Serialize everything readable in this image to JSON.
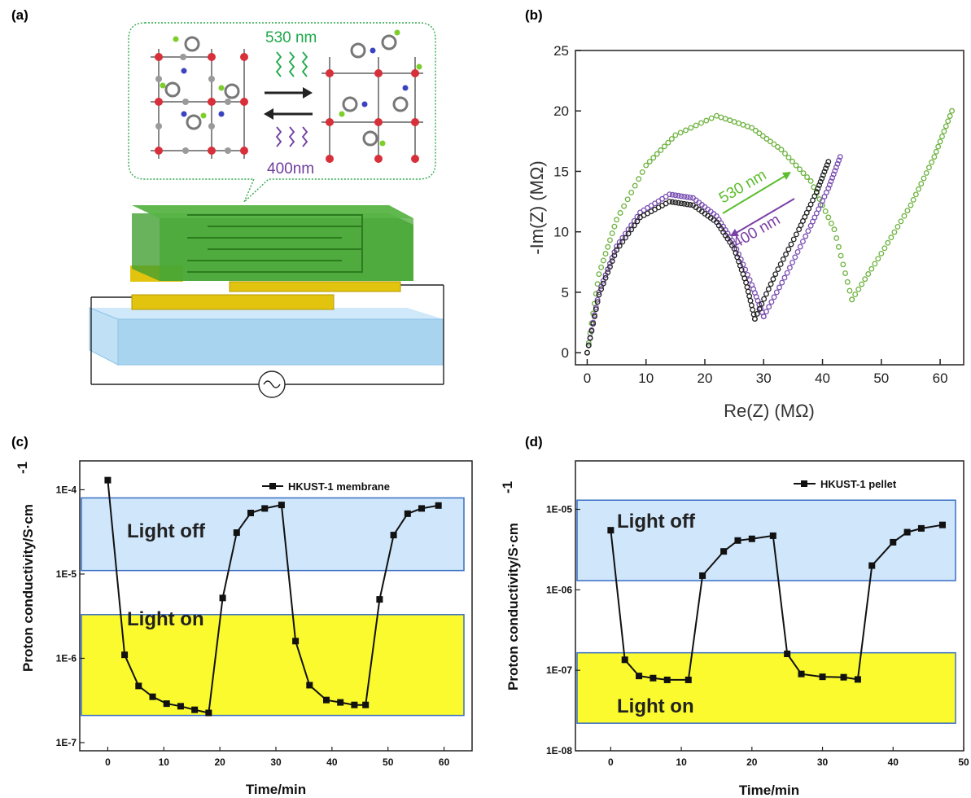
{
  "panel_labels": [
    "(a)",
    "(b)",
    "(c)",
    "(d)"
  ],
  "schematic": {
    "forward_label": "530 nm",
    "reverse_label": "400nm",
    "colors": {
      "green": "#1ea84a",
      "purple": "#6f3d9e",
      "film": "#3f9e2f",
      "electrode": "#e2c40f",
      "substrate": "#a9d4ef"
    }
  },
  "chart_data": [
    {
      "type": "scatter",
      "panel": "(b)",
      "xlabel": "Re(Z)  (MΩ)",
      "ylabel": "-Im(Z)  (MΩ)",
      "xlim": [
        -2,
        64
      ],
      "ylim": [
        -1,
        25
      ],
      "xticks": [
        0,
        10,
        20,
        30,
        40,
        50,
        60
      ],
      "yticks": [
        0,
        5,
        10,
        15,
        20,
        25
      ],
      "annotations": [
        {
          "text": "530 nm",
          "color": "#5cbd2e"
        },
        {
          "text": "400 nm",
          "color": "#7b3fa6"
        }
      ],
      "series": [
        {
          "color": "#6db33f",
          "arc_points": [
            [
              0,
              0
            ],
            [
              2,
              6.5
            ],
            [
              5,
              11
            ],
            [
              10,
              15.5
            ],
            [
              15,
              18
            ],
            [
              22,
              19.6
            ],
            [
              28,
              18.6
            ],
            [
              33,
              16.8
            ],
            [
              38,
              14.2
            ],
            [
              42,
              10.2
            ],
            [
              45,
              4.4
            ]
          ],
          "tail_points": [
            [
              45,
              4.4
            ],
            [
              50,
              8.2
            ],
            [
              55,
              12.2
            ],
            [
              59,
              16.2
            ],
            [
              62,
              20
            ]
          ]
        },
        {
          "color": "#7a4fb3",
          "arc_points": [
            [
              0,
              0
            ],
            [
              2,
              5
            ],
            [
              5,
              8.8
            ],
            [
              9,
              11.6
            ],
            [
              14,
              13.1
            ],
            [
              18,
              12.8
            ],
            [
              22,
              11.3
            ],
            [
              25,
              9
            ],
            [
              28,
              5.6
            ],
            [
              30,
              3
            ]
          ],
          "tail_points": [
            [
              30,
              3
            ],
            [
              34,
              6.6
            ],
            [
              38,
              10.5
            ],
            [
              41,
              13.6
            ],
            [
              43,
              16.2
            ]
          ]
        },
        {
          "color": "#222222",
          "arc_points": [
            [
              0,
              0
            ],
            [
              2,
              4.8
            ],
            [
              5,
              8.5
            ],
            [
              9,
              11.2
            ],
            [
              14,
              12.5
            ],
            [
              18,
              12.2
            ],
            [
              22,
              10.8
            ],
            [
              25,
              8.6
            ],
            [
              27,
              5.8
            ],
            [
              28.5,
              2.8
            ]
          ],
          "tail_points": [
            [
              28.5,
              2.8
            ],
            [
              32,
              6.5
            ],
            [
              36,
              10.2
            ],
            [
              39,
              13.3
            ],
            [
              41,
              15.8
            ]
          ]
        }
      ]
    },
    {
      "type": "line",
      "panel": "(c)",
      "xlabel": "Time/min",
      "ylabel": "Proton conductivity/S·cm",
      "ylabel_superscript": "-1",
      "yscale": "log",
      "xlim": [
        -5,
        65
      ],
      "ylim": [
        8e-08,
        0.00022
      ],
      "xticks": [
        0,
        10,
        20,
        30,
        40,
        50,
        60
      ],
      "yticks": [
        1e-07,
        1e-06,
        1e-05,
        0.0001
      ],
      "ytick_labels": [
        "1E-7",
        "1E-6",
        "1E-5",
        "1E-4"
      ],
      "bands": [
        {
          "label": "Light off",
          "y0": 1.1e-05,
          "y1": 8e-05,
          "color": "#cfe6fb"
        },
        {
          "label": "Light on",
          "y0": 2.1e-07,
          "y1": 3.3e-06,
          "color": "#fafa2e"
        }
      ],
      "series": [
        {
          "name": "HKUST-1 membrane",
          "x": [
            0,
            3,
            5.5,
            8,
            10.5,
            13,
            15.5,
            18,
            20.5,
            23,
            25.5,
            28,
            31,
            33.5,
            36,
            39,
            41.5,
            44,
            46,
            48.5,
            51,
            53.5,
            56,
            59
          ],
          "y": [
            0.00013,
            1.1e-06,
            4.7e-07,
            3.5e-07,
            2.9e-07,
            2.7e-07,
            2.45e-07,
            2.25e-07,
            5.2e-06,
            3.1e-05,
            5.3e-05,
            6e-05,
            6.6e-05,
            1.6e-06,
            4.8e-07,
            3.2e-07,
            3e-07,
            2.8e-07,
            2.8e-07,
            5e-06,
            2.9e-05,
            5.2e-05,
            6e-05,
            6.5e-05
          ]
        }
      ]
    },
    {
      "type": "line",
      "panel": "(d)",
      "xlabel": "Time/min",
      "ylabel": "Proton conductivity/S·cm",
      "ylabel_superscript": "-1",
      "yscale": "log",
      "xlim": [
        -5,
        50
      ],
      "ylim": [
        1e-08,
        4e-05
      ],
      "xticks": [
        0,
        10,
        20,
        30,
        40,
        50
      ],
      "yticks": [
        1e-08,
        1e-07,
        1e-06,
        1e-05
      ],
      "ytick_labels": [
        "1E-08",
        "1E-07",
        "1E-06",
        "1E-05"
      ],
      "bands": [
        {
          "label": "Light off",
          "y0": 1.3e-06,
          "y1": 1.3e-05,
          "color": "#cfe6fb"
        },
        {
          "label": "Light on",
          "y0": 2.2e-08,
          "y1": 1.65e-07,
          "color": "#fafa2e"
        }
      ],
      "series": [
        {
          "name": "HKUST-1 pellet",
          "x": [
            0,
            2,
            4,
            6,
            8,
            11,
            13,
            16,
            18,
            20,
            23,
            25,
            27,
            30,
            33,
            35,
            37,
            40,
            42,
            44,
            47
          ],
          "y": [
            5.5e-06,
            1.35e-07,
            8.5e-08,
            8e-08,
            7.6e-08,
            7.6e-08,
            1.5e-06,
            3e-06,
            4.1e-06,
            4.3e-06,
            4.7e-06,
            1.6e-07,
            9e-08,
            8.3e-08,
            8.2e-08,
            7.7e-08,
            2e-06,
            3.9e-06,
            5.2e-06,
            5.8e-06,
            6.4e-06
          ]
        }
      ]
    }
  ]
}
